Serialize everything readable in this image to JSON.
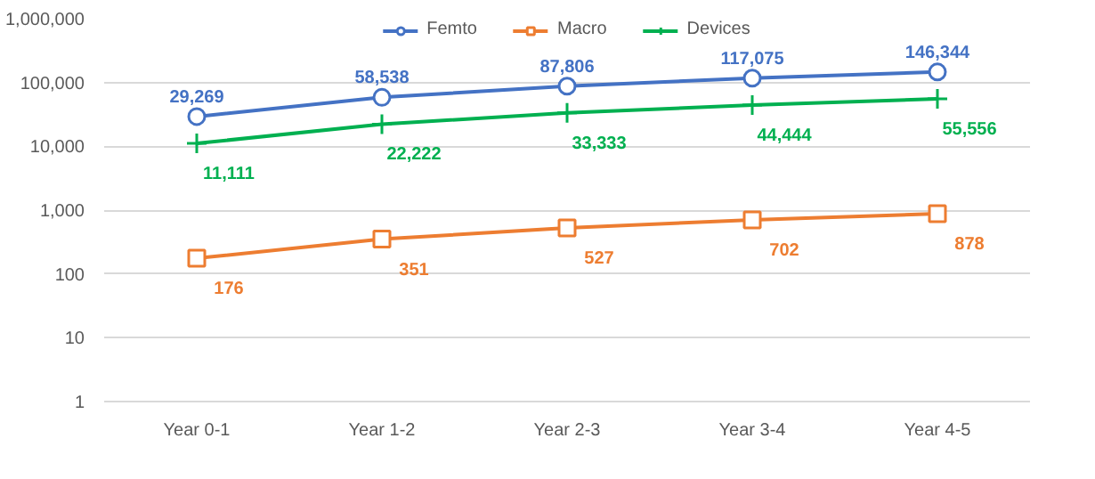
{
  "chart_data": {
    "type": "line",
    "categories": [
      "Year 0-1",
      "Year 1-2",
      "Year 2-3",
      "Year 3-4",
      "Year 4-5"
    ],
    "series": [
      {
        "name": "Femto",
        "color": "#4472c4",
        "marker": "circle",
        "values": [
          29269,
          58538,
          87806,
          117075,
          146344
        ],
        "value_labels": [
          "29,269",
          "58,538",
          "87,806",
          "117,075",
          "146,344"
        ]
      },
      {
        "name": "Macro",
        "color": "#ed7d31",
        "marker": "square",
        "values": [
          176,
          351,
          527,
          702,
          878
        ],
        "value_labels": [
          "176",
          "351",
          "527",
          "702",
          "878"
        ]
      },
      {
        "name": "Devices",
        "color": "#00b050",
        "marker": "cross",
        "values": [
          11111,
          22222,
          33333,
          44444,
          55556
        ],
        "value_labels": [
          "11,111",
          "22,222",
          "33,333",
          "44,444",
          "55,556"
        ]
      }
    ],
    "log": true,
    "ylim": [
      1,
      1000000
    ],
    "yticks": [
      1,
      10,
      100,
      {
        "value": 1000,
        "label": "1,000"
      },
      {
        "value": 10000,
        "label": "10,000"
      },
      {
        "value": 100000,
        "label": "100,000"
      },
      {
        "value": 1000000,
        "label": "1,000,000"
      }
    ],
    "grid": "y",
    "legend": "top"
  }
}
